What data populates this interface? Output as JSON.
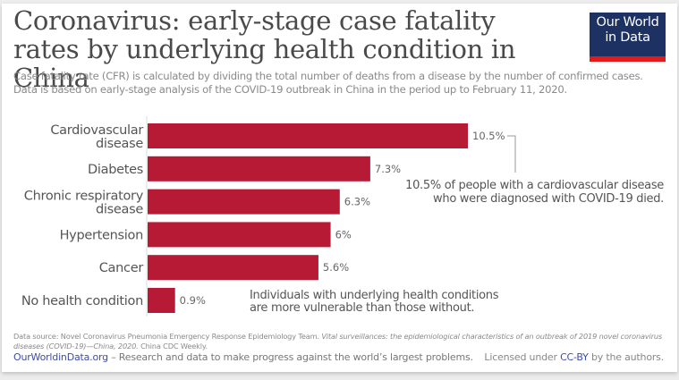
{
  "header": {
    "title": "Coronavirus: early-stage case fatality rates by underlying health condition in China",
    "subtitle_line1": "Case fatality rate (CFR) is calculated by dividing the total number of deaths from a disease by the number of confirmed cases.",
    "subtitle_line2": "Data is based on early-stage analysis of the COVID-19 outbreak in China in the period up to February 11, 2020."
  },
  "logo": {
    "line1": "Our World",
    "line2": "in Data",
    "bg_color": "#1d3263",
    "accent_color": "#e21a1a"
  },
  "chart_data": {
    "type": "bar",
    "orientation": "horizontal",
    "title": "Coronavirus: early-stage case fatality rates by underlying health condition in China",
    "xlabel": "",
    "ylabel": "",
    "unit": "%",
    "xlim": [
      0,
      10.5
    ],
    "grid": false,
    "bar_color": "#b71a35",
    "categories": [
      [
        "Cardiovascular",
        "disease"
      ],
      [
        "Diabetes"
      ],
      [
        "Chronic respiratory",
        "disease"
      ],
      [
        "Hypertension"
      ],
      [
        "Cancer"
      ],
      [
        "No health condition"
      ]
    ],
    "values": [
      10.5,
      7.3,
      6.3,
      6.0,
      5.6,
      0.9
    ],
    "value_labels": [
      "10.5%",
      "7.3%",
      "6.3%",
      "6%",
      "5.6%",
      "0.9%"
    ],
    "annotations": [
      {
        "target": "Cardiovascular disease",
        "lines": [
          "10.5% of people with a cardiovascular disease",
          "who were diagnosed with COVID-19 died."
        ]
      },
      {
        "target": "No health condition",
        "lines": [
          "Individuals with underlying health conditions",
          "are more vulnerable than those without."
        ]
      }
    ]
  },
  "footer": {
    "source_prefix": "Data source: Novel Coronavirus Pneumonia Emergency Response Epidemiology Team. ",
    "source_italic": "Vital surveillances: the epidemiological characteristics of an outbreak of 2019 novel coronavirus diseases (COVID-19)—China, 2020.",
    "source_suffix": " China CDC Weekly.",
    "site_link": "OurWorldinData.org",
    "site_tagline": " – Research and data to make progress against the world’s largest problems.",
    "license_prefix": "Licensed under ",
    "license_link": "CC-BY",
    "license_suffix": " by the authors."
  }
}
